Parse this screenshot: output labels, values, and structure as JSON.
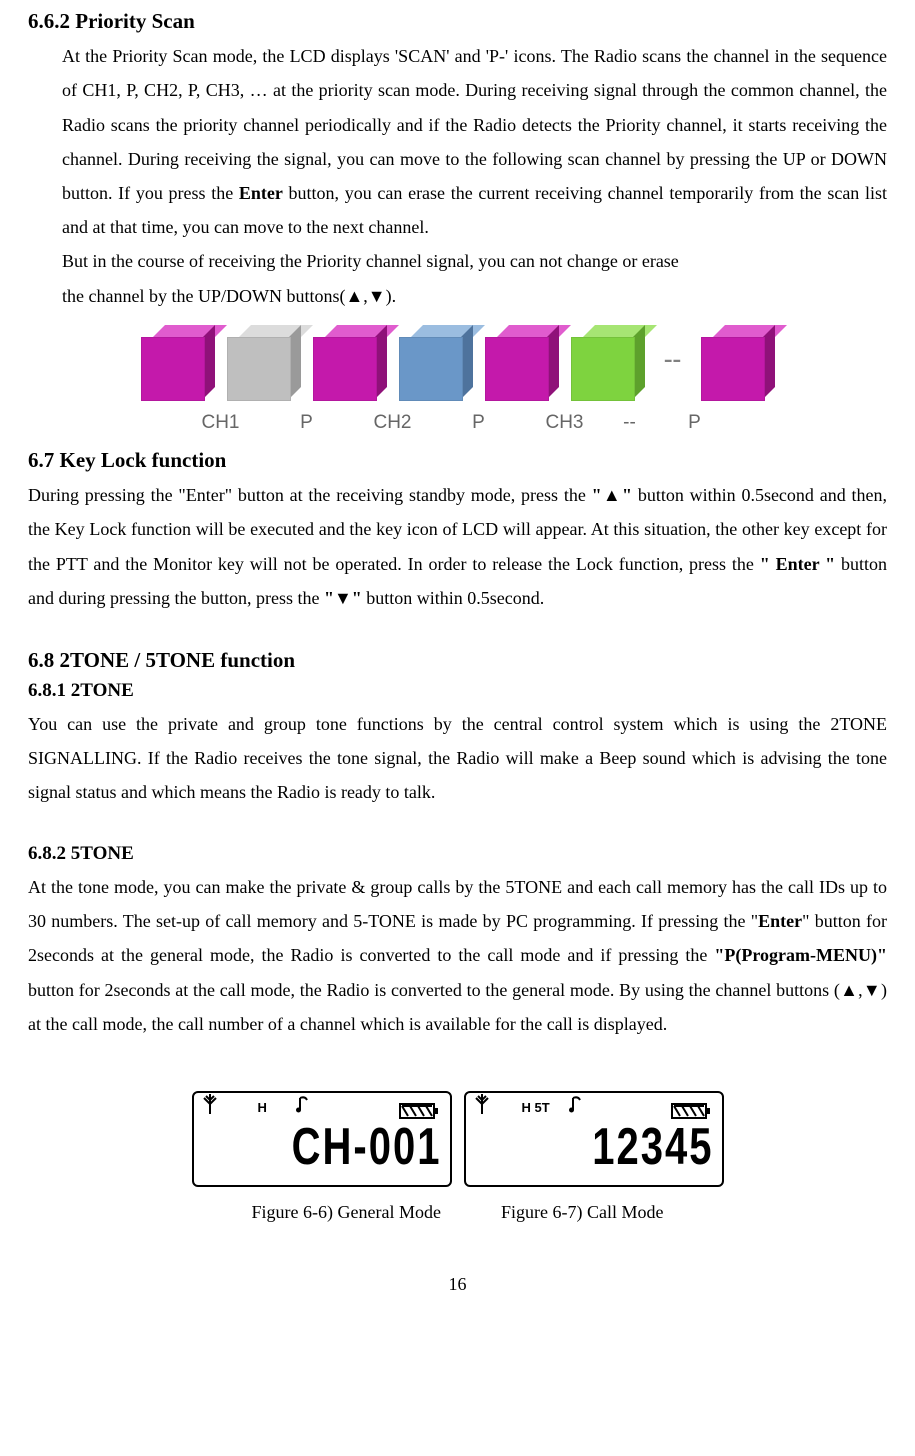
{
  "sections": {
    "priority_scan": {
      "heading": "6.6.2 Priority Scan",
      "p1_a": "At the Priority Scan mode, the LCD displays 'SCAN' and 'P-' icons. The Radio scans the channel in the sequence of CH1, P, CH2, P, CH3, … at the priority scan mode. During receiving signal through the common channel, the Radio scans the priority channel periodically and if the Radio detects the Priority channel, it starts receiving the channel. During receiving the signal, you can move to the following scan channel by pressing the UP or DOWN button. If you press the ",
      "enter": "Enter",
      "p1_b": " button, you can erase the current receiving channel temporarily from the scan list and at that time, you can move to the next channel.",
      "p2": "But in the course of receiving the Priority channel signal, you can not change or erase",
      "p3": "the channel by the UP/DOWN buttons(▲,▼)."
    },
    "keylock": {
      "heading": "6.7 Key Lock function",
      "p_a": "During pressing the \"Enter\" button at the receiving standby mode, press the ",
      "up": "\"▲\"",
      "p_b": " button within 0.5second and then, the Key Lock function will be executed and the key icon of LCD will appear. At this situation, the other key except for the PTT and the Monitor key will not be operated. In order to release the Lock function, press the ",
      "enter": "\" Enter \"",
      "p_c": " button and during pressing the button, press the ",
      "down": "\"▼\"",
      "p_d": " button within 0.5second."
    },
    "tone": {
      "heading": "6.8 2TONE / 5TONE function",
      "t2_heading": "6.8.1 2TONE",
      "t2_body": "You can use the private and group tone functions by the central control system which is using the 2TONE SIGNALLING. If the Radio receives the tone signal, the Radio will make a Beep sound which is advising the tone signal status and which means the Radio is ready to talk.",
      "t5_heading": "6.8.2 5TONE",
      "t5_a": "At the tone mode, you can make the private & group calls by the 5TONE and each call memory has the call IDs up to 30 numbers. The set-up of call memory and 5-TONE is made by PC programming. If pressing the \"",
      "t5_enter": "Enter",
      "t5_b": "\" button for 2seconds at the general mode, the Radio is converted to the call mode and if pressing the ",
      "t5_pmenu": "\"P(Program-MENU)\"",
      "t5_c": " button for 2seconds at the call mode, the Radio is converted to the general mode. By using the channel buttons (▲,▼) at the call mode, the call number of a channel which is available for the call is displayed."
    }
  },
  "diagram": {
    "labels": [
      "CH1",
      "P",
      "CH2",
      "P",
      "CH3",
      "--",
      "P"
    ],
    "dash": "--",
    "blocks": [
      {
        "front": "#c419ab",
        "top": "#e05cce",
        "side": "#8f1179"
      },
      {
        "front": "#bfbfbf",
        "top": "#dcdcdc",
        "side": "#9a9a9a"
      },
      {
        "front": "#c419ab",
        "top": "#e05cce",
        "side": "#8f1179"
      },
      {
        "front": "#6a97c8",
        "top": "#9bbde0",
        "side": "#4e739d"
      },
      {
        "front": "#c419ab",
        "top": "#e05cce",
        "side": "#8f1179"
      },
      {
        "front": "#7ed33f",
        "top": "#a6e573",
        "side": "#5da12c"
      }
    ],
    "last_block": {
      "front": "#c419ab",
      "top": "#e05cce",
      "side": "#8f1179"
    }
  },
  "lcd": {
    "general": {
      "indicator": "H",
      "text": "CH-001"
    },
    "call": {
      "indicator": "H 5T",
      "text": "12345"
    }
  },
  "captions": {
    "general": "Figure 6-6) General Mode",
    "call": "Figure 6-7) Call Mode"
  },
  "page": "16"
}
